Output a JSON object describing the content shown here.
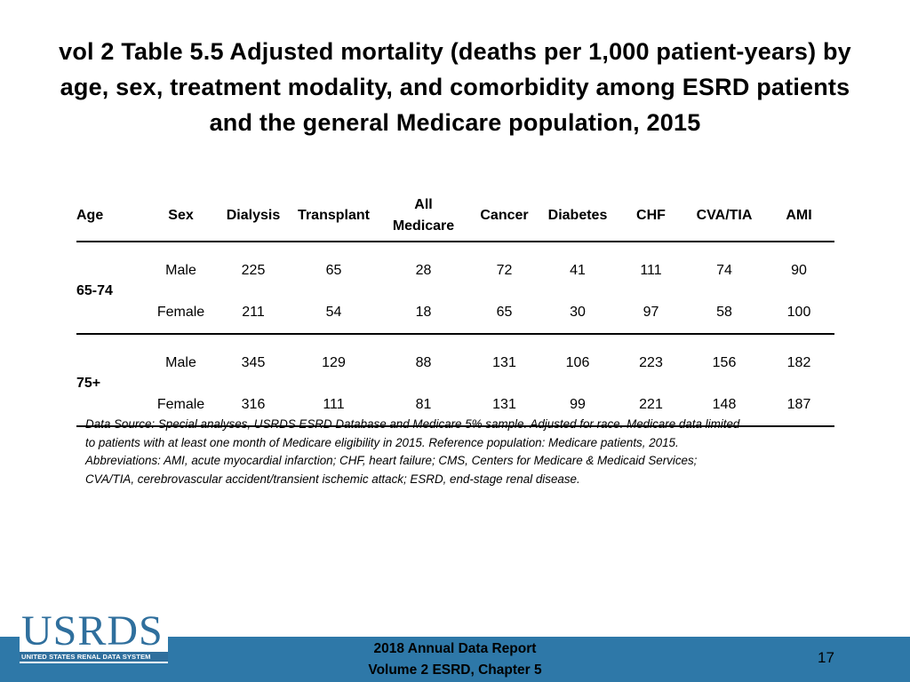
{
  "title": "vol 2 Table 5.5 Adjusted mortality (deaths per 1,000 patient-years) by age, sex, treatment modality, and comorbidity among ESRD patients and the general Medicare population, 2015",
  "table": {
    "headers": {
      "age": "Age",
      "sex": "Sex",
      "dialysis": "Dialysis",
      "transplant": "Transplant",
      "all_medicare_line1": "All",
      "all_medicare_line2": "Medicare",
      "cancer": "Cancer",
      "diabetes": "Diabetes",
      "chf": "CHF",
      "cva_tia": "CVA/TIA",
      "ami": "AMI"
    },
    "groups": [
      {
        "age": "65-74",
        "rows": [
          {
            "sex": "Male",
            "values": [
              "225",
              "65",
              "28",
              "72",
              "41",
              "111",
              "74",
              "90"
            ]
          },
          {
            "sex": "Female",
            "values": [
              "211",
              "54",
              "18",
              "65",
              "30",
              "97",
              "58",
              "100"
            ]
          }
        ]
      },
      {
        "age": "75+",
        "rows": [
          {
            "sex": "Male",
            "values": [
              "345",
              "129",
              "88",
              "131",
              "106",
              "223",
              "156",
              "182"
            ]
          },
          {
            "sex": "Female",
            "values": [
              "316",
              "111",
              "81",
              "131",
              "99",
              "221",
              "148",
              "187"
            ]
          }
        ]
      }
    ]
  },
  "note_lines": [
    "Data Source: Special analyses, USRDS ESRD Database and Medicare 5% sample. Adjusted for race. Medicare data limited",
    "to patients with at least one month of Medicare eligibility in 2015. Reference population: Medicare patients, 2015.",
    "Abbreviations: AMI, acute myocardial infarction; CHF, heart failure; CMS, Centers for Medicare & Medicaid Services;",
    "CVA/TIA, cerebrovascular accident/transient ischemic attack; ESRD, end-stage renal disease."
  ],
  "logo": {
    "word": "USRDS",
    "subtitle": "UNITED STATES RENAL DATA SYSTEM"
  },
  "footer": {
    "line1": "2018 Annual Data Report",
    "line2": "Volume 2 ESRD, Chapter 5",
    "page_number": "17"
  },
  "colors": {
    "footer_bar": "#2e78a8",
    "logo_blue": "#2f6f9d"
  }
}
